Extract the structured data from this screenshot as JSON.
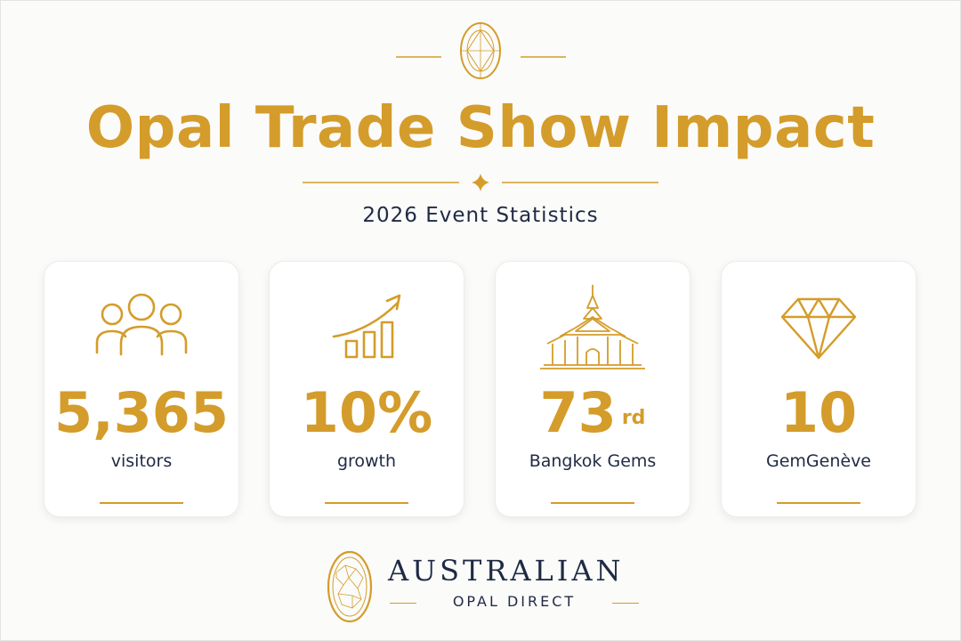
{
  "header": {
    "title": "Opal Trade Show Impact",
    "subtitle": "2026 Event Statistics"
  },
  "stats": [
    {
      "icon": "people-group-icon",
      "value": "5,365",
      "label": "visitors"
    },
    {
      "icon": "growth-chart-icon",
      "value": "10%",
      "label": "growth"
    },
    {
      "icon": "thai-temple-icon",
      "value": "73",
      "suffix": "rd",
      "label": "Bangkok Gems"
    },
    {
      "icon": "diamond-icon",
      "value": "10",
      "label": "GemGenève"
    }
  ],
  "brand": {
    "name": "AUSTRALIAN",
    "tagline": "OPAL DIRECT"
  },
  "colors": {
    "gold": "#d49c2a",
    "navy": "#1f2a44",
    "background": "#fbfbfa"
  }
}
